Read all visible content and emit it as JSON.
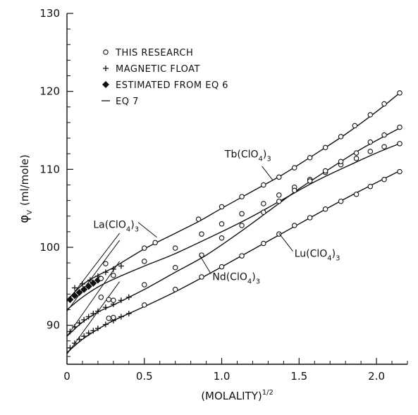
{
  "chart_data": {
    "type": "line",
    "title": "",
    "xlabel": "(MOLALITY)",
    "xlabel_exponent": "1/2",
    "ylabel": "φ",
    "ylabel_subscript": "V",
    "ylabel_unit": "(ml/mole)",
    "xlim": [
      0,
      2.2
    ],
    "ylim": [
      85,
      130
    ],
    "x_ticks": [
      0,
      0.5,
      1.0,
      1.5,
      2.0
    ],
    "x_tick_labels": [
      "0",
      "0.5",
      "1.0",
      "1.5",
      "2.0"
    ],
    "y_ticks": [
      90,
      100,
      110,
      120,
      130
    ],
    "y_tick_labels": [
      "90",
      "100",
      "110",
      "120",
      "130"
    ],
    "grid": false,
    "legend": {
      "placement": "top-left",
      "entries": [
        {
          "marker": "circle",
          "label": "THIS RESEARCH"
        },
        {
          "marker": "plus",
          "label": "MAGNETIC FLOAT"
        },
        {
          "marker": "diamond",
          "label": "ESTIMATED FROM EQ 6"
        },
        {
          "marker": "line",
          "label": "EQ 7"
        }
      ]
    },
    "series": [
      {
        "name": "Tb(ClO4)3",
        "label_parts": [
          "Tb(ClO",
          "4",
          ")",
          "3"
        ],
        "curve": [
          [
            0,
            93.2
          ],
          [
            0.1,
            95.2
          ],
          [
            0.2,
            96.4
          ],
          [
            0.3,
            97.4
          ],
          [
            0.5,
            99.8
          ],
          [
            0.7,
            101.8
          ],
          [
            0.85,
            103.3
          ],
          [
            1.0,
            105.0
          ],
          [
            1.2,
            107.2
          ],
          [
            1.4,
            109.4
          ],
          [
            1.6,
            111.9
          ],
          [
            1.8,
            114.5
          ],
          [
            2.0,
            117.4
          ],
          [
            2.15,
            119.8
          ]
        ],
        "circles": [
          [
            0.25,
            97.9
          ],
          [
            0.5,
            99.9
          ],
          [
            0.57,
            100.6
          ],
          [
            0.85,
            103.6
          ],
          [
            1.0,
            105.2
          ],
          [
            1.13,
            106.5
          ],
          [
            1.27,
            108.0
          ],
          [
            1.37,
            109.0
          ],
          [
            1.47,
            110.2
          ],
          [
            1.57,
            111.5
          ],
          [
            1.67,
            112.8
          ],
          [
            1.77,
            114.2
          ],
          [
            1.86,
            115.6
          ],
          [
            1.96,
            117.0
          ],
          [
            2.05,
            118.4
          ],
          [
            2.15,
            119.8
          ]
        ],
        "plus": [
          [
            0.05,
            94.8
          ],
          [
            0.1,
            95.3
          ],
          [
            0.15,
            95.8
          ],
          [
            0.2,
            96.3
          ],
          [
            0.25,
            96.8
          ],
          [
            0.3,
            97.2
          ],
          [
            0.35,
            97.6
          ]
        ],
        "diamonds": [],
        "eq7": [
          [
            0,
            93.0
          ],
          [
            0.34,
            101.8
          ]
        ]
      },
      {
        "name": "La(ClO4)3",
        "label_parts": [
          "La(ClO",
          "4",
          ")",
          "3"
        ],
        "curve": [
          [
            0,
            92.0
          ],
          [
            0.1,
            93.6
          ],
          [
            0.2,
            94.9
          ],
          [
            0.3,
            95.9
          ],
          [
            0.5,
            97.6
          ],
          [
            0.7,
            99.2
          ],
          [
            1.0,
            102.0
          ],
          [
            1.2,
            104.0
          ],
          [
            1.4,
            106.2
          ],
          [
            1.6,
            108.4
          ],
          [
            1.8,
            110.3
          ],
          [
            2.0,
            112.1
          ],
          [
            2.15,
            113.3
          ]
        ],
        "circles": [
          [
            0.22,
            96.0
          ],
          [
            0.3,
            96.4
          ],
          [
            0.5,
            98.2
          ],
          [
            0.7,
            99.9
          ],
          [
            0.87,
            101.7
          ],
          [
            1.0,
            103.0
          ],
          [
            1.13,
            104.3
          ],
          [
            1.27,
            105.6
          ],
          [
            1.37,
            106.7
          ],
          [
            1.47,
            107.7
          ],
          [
            1.57,
            108.7
          ],
          [
            1.67,
            109.6
          ],
          [
            1.77,
            110.6
          ],
          [
            1.87,
            111.4
          ],
          [
            1.96,
            112.3
          ],
          [
            2.05,
            112.9
          ],
          [
            2.15,
            113.3
          ]
        ],
        "plus": [],
        "diamonds": [
          [
            0.02,
            93.3
          ],
          [
            0.05,
            93.8
          ],
          [
            0.08,
            94.2
          ],
          [
            0.11,
            94.6
          ],
          [
            0.14,
            95.0
          ],
          [
            0.17,
            95.4
          ],
          [
            0.2,
            95.8
          ]
        ],
        "eq7": [
          [
            0,
            91.8
          ],
          [
            0.34,
            100.9
          ]
        ]
      },
      {
        "name": "Nd(ClO4)3",
        "label_parts": [
          "Nd(ClO",
          "4",
          ")",
          "3"
        ],
        "curve": [
          [
            0,
            88.6
          ],
          [
            0.1,
            90.4
          ],
          [
            0.2,
            91.7
          ],
          [
            0.3,
            92.6
          ],
          [
            0.5,
            94.6
          ],
          [
            0.7,
            96.8
          ],
          [
            0.9,
            99.0
          ],
          [
            1.1,
            101.7
          ],
          [
            1.3,
            104.6
          ],
          [
            1.5,
            107.5
          ],
          [
            1.7,
            110.1
          ],
          [
            1.9,
            112.6
          ],
          [
            2.15,
            115.3
          ]
        ],
        "circles": [
          [
            0.22,
            93.6
          ],
          [
            0.27,
            93.3
          ],
          [
            0.3,
            93.2
          ],
          [
            0.5,
            95.2
          ],
          [
            0.7,
            97.4
          ],
          [
            0.87,
            99.0
          ],
          [
            1.0,
            101.2
          ],
          [
            1.13,
            102.8
          ],
          [
            1.27,
            104.5
          ],
          [
            1.37,
            105.9
          ],
          [
            1.47,
            107.3
          ],
          [
            1.57,
            108.5
          ],
          [
            1.67,
            109.8
          ],
          [
            1.77,
            111.0
          ],
          [
            1.87,
            112.1
          ],
          [
            1.96,
            113.5
          ],
          [
            2.05,
            114.4
          ],
          [
            2.15,
            115.4
          ]
        ],
        "plus": [
          [
            0.02,
            89.2
          ],
          [
            0.05,
            89.8
          ],
          [
            0.08,
            90.3
          ],
          [
            0.11,
            90.7
          ],
          [
            0.14,
            91.1
          ],
          [
            0.17,
            91.5
          ],
          [
            0.2,
            91.8
          ],
          [
            0.25,
            92.3
          ],
          [
            0.3,
            92.7
          ],
          [
            0.35,
            93.2
          ],
          [
            0.4,
            93.6
          ]
        ],
        "diamonds": [],
        "eq7": [
          [
            0,
            88.6
          ],
          [
            0.34,
            98.2
          ]
        ]
      },
      {
        "name": "Lu(ClO4)3",
        "label_parts": [
          "Lu(ClO",
          "4",
          ")",
          "3"
        ],
        "curve": [
          [
            0,
            86.5
          ],
          [
            0.1,
            88.2
          ],
          [
            0.2,
            89.5
          ],
          [
            0.3,
            90.6
          ],
          [
            0.5,
            92.4
          ],
          [
            0.7,
            94.3
          ],
          [
            0.9,
            96.4
          ],
          [
            1.1,
            98.6
          ],
          [
            1.3,
            100.8
          ],
          [
            1.5,
            103.0
          ],
          [
            1.7,
            105.2
          ],
          [
            1.9,
            107.3
          ],
          [
            2.15,
            109.8
          ]
        ],
        "circles": [
          [
            0.27,
            90.9
          ],
          [
            0.3,
            91.0
          ],
          [
            0.5,
            92.6
          ],
          [
            0.7,
            94.6
          ],
          [
            0.87,
            96.2
          ],
          [
            1.0,
            97.5
          ],
          [
            1.13,
            98.9
          ],
          [
            1.27,
            100.5
          ],
          [
            1.37,
            101.7
          ],
          [
            1.47,
            102.8
          ],
          [
            1.57,
            103.8
          ],
          [
            1.67,
            104.9
          ],
          [
            1.77,
            105.9
          ],
          [
            1.87,
            106.8
          ],
          [
            1.96,
            107.8
          ],
          [
            2.05,
            108.7
          ],
          [
            2.15,
            109.7
          ]
        ],
        "plus": [
          [
            0.02,
            87.1
          ],
          [
            0.05,
            87.7
          ],
          [
            0.08,
            88.2
          ],
          [
            0.11,
            88.6
          ],
          [
            0.14,
            89.0
          ],
          [
            0.17,
            89.3
          ],
          [
            0.2,
            89.6
          ],
          [
            0.25,
            90.1
          ],
          [
            0.3,
            90.6
          ],
          [
            0.35,
            91.1
          ],
          [
            0.4,
            91.5
          ]
        ],
        "diamonds": [],
        "eq7": [
          [
            0,
            86.3
          ],
          [
            0.34,
            95.6
          ]
        ]
      }
    ]
  }
}
